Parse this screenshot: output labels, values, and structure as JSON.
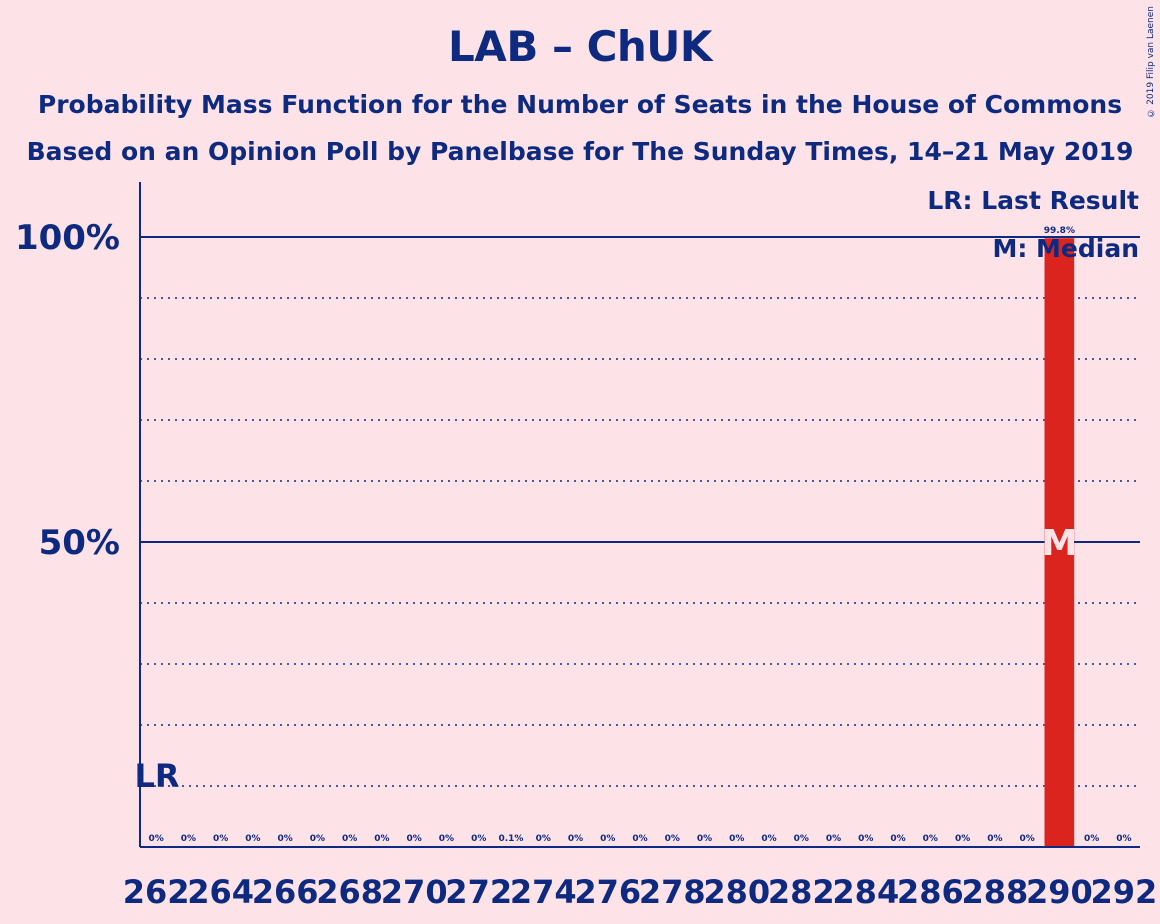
{
  "title": "LAB – ChUK",
  "subtitle1": "Probability Mass Function for the Number of Seats in the House of Commons",
  "subtitle2": "Based on an Opinion Poll by Panelbase for The Sunday Times, 14–21 May 2019",
  "copyright": "© 2019 Filip van Laenen",
  "colors": {
    "background": "#fde3e7",
    "axis": "#0d2a80",
    "bar": "#dc241f",
    "median_text": "#fde3e7"
  },
  "chart_data": {
    "type": "bar",
    "x": [
      262,
      263,
      264,
      265,
      266,
      267,
      268,
      269,
      270,
      271,
      272,
      273,
      274,
      275,
      276,
      277,
      278,
      279,
      280,
      281,
      282,
      283,
      284,
      285,
      286,
      287,
      288,
      289,
      290,
      291,
      292
    ],
    "values": [
      0,
      0,
      0,
      0,
      0,
      0,
      0,
      0,
      0,
      0,
      0,
      0.1,
      0,
      0,
      0,
      0,
      0,
      0,
      0,
      0,
      0,
      0,
      0,
      0,
      0,
      0,
      0,
      0,
      99.8,
      0,
      0
    ],
    "value_labels": [
      "0%",
      "0%",
      "0%",
      "0%",
      "0%",
      "0%",
      "0%",
      "0%",
      "0%",
      "0%",
      "0%",
      "0.1%",
      "0%",
      "0%",
      "0%",
      "0%",
      "0%",
      "0%",
      "0%",
      "0%",
      "0%",
      "0%",
      "0%",
      "0%",
      "0%",
      "0%",
      "0%",
      "0%",
      "99.8%",
      "0%",
      "0%"
    ],
    "x_tick_labels": [
      "262",
      "264",
      "266",
      "268",
      "270",
      "272",
      "274",
      "276",
      "278",
      "280",
      "282",
      "284",
      "286",
      "288",
      "290",
      "292"
    ],
    "y_tick_labels": [
      "50%",
      "100%"
    ],
    "ylim": [
      0,
      100
    ],
    "last_result_seat": 262,
    "median_seat": 290,
    "legend": {
      "last_result": "LR: Last Result",
      "median": "M: Median",
      "placement": "top-right"
    },
    "lr_marker": "LR",
    "median_marker": "M"
  }
}
